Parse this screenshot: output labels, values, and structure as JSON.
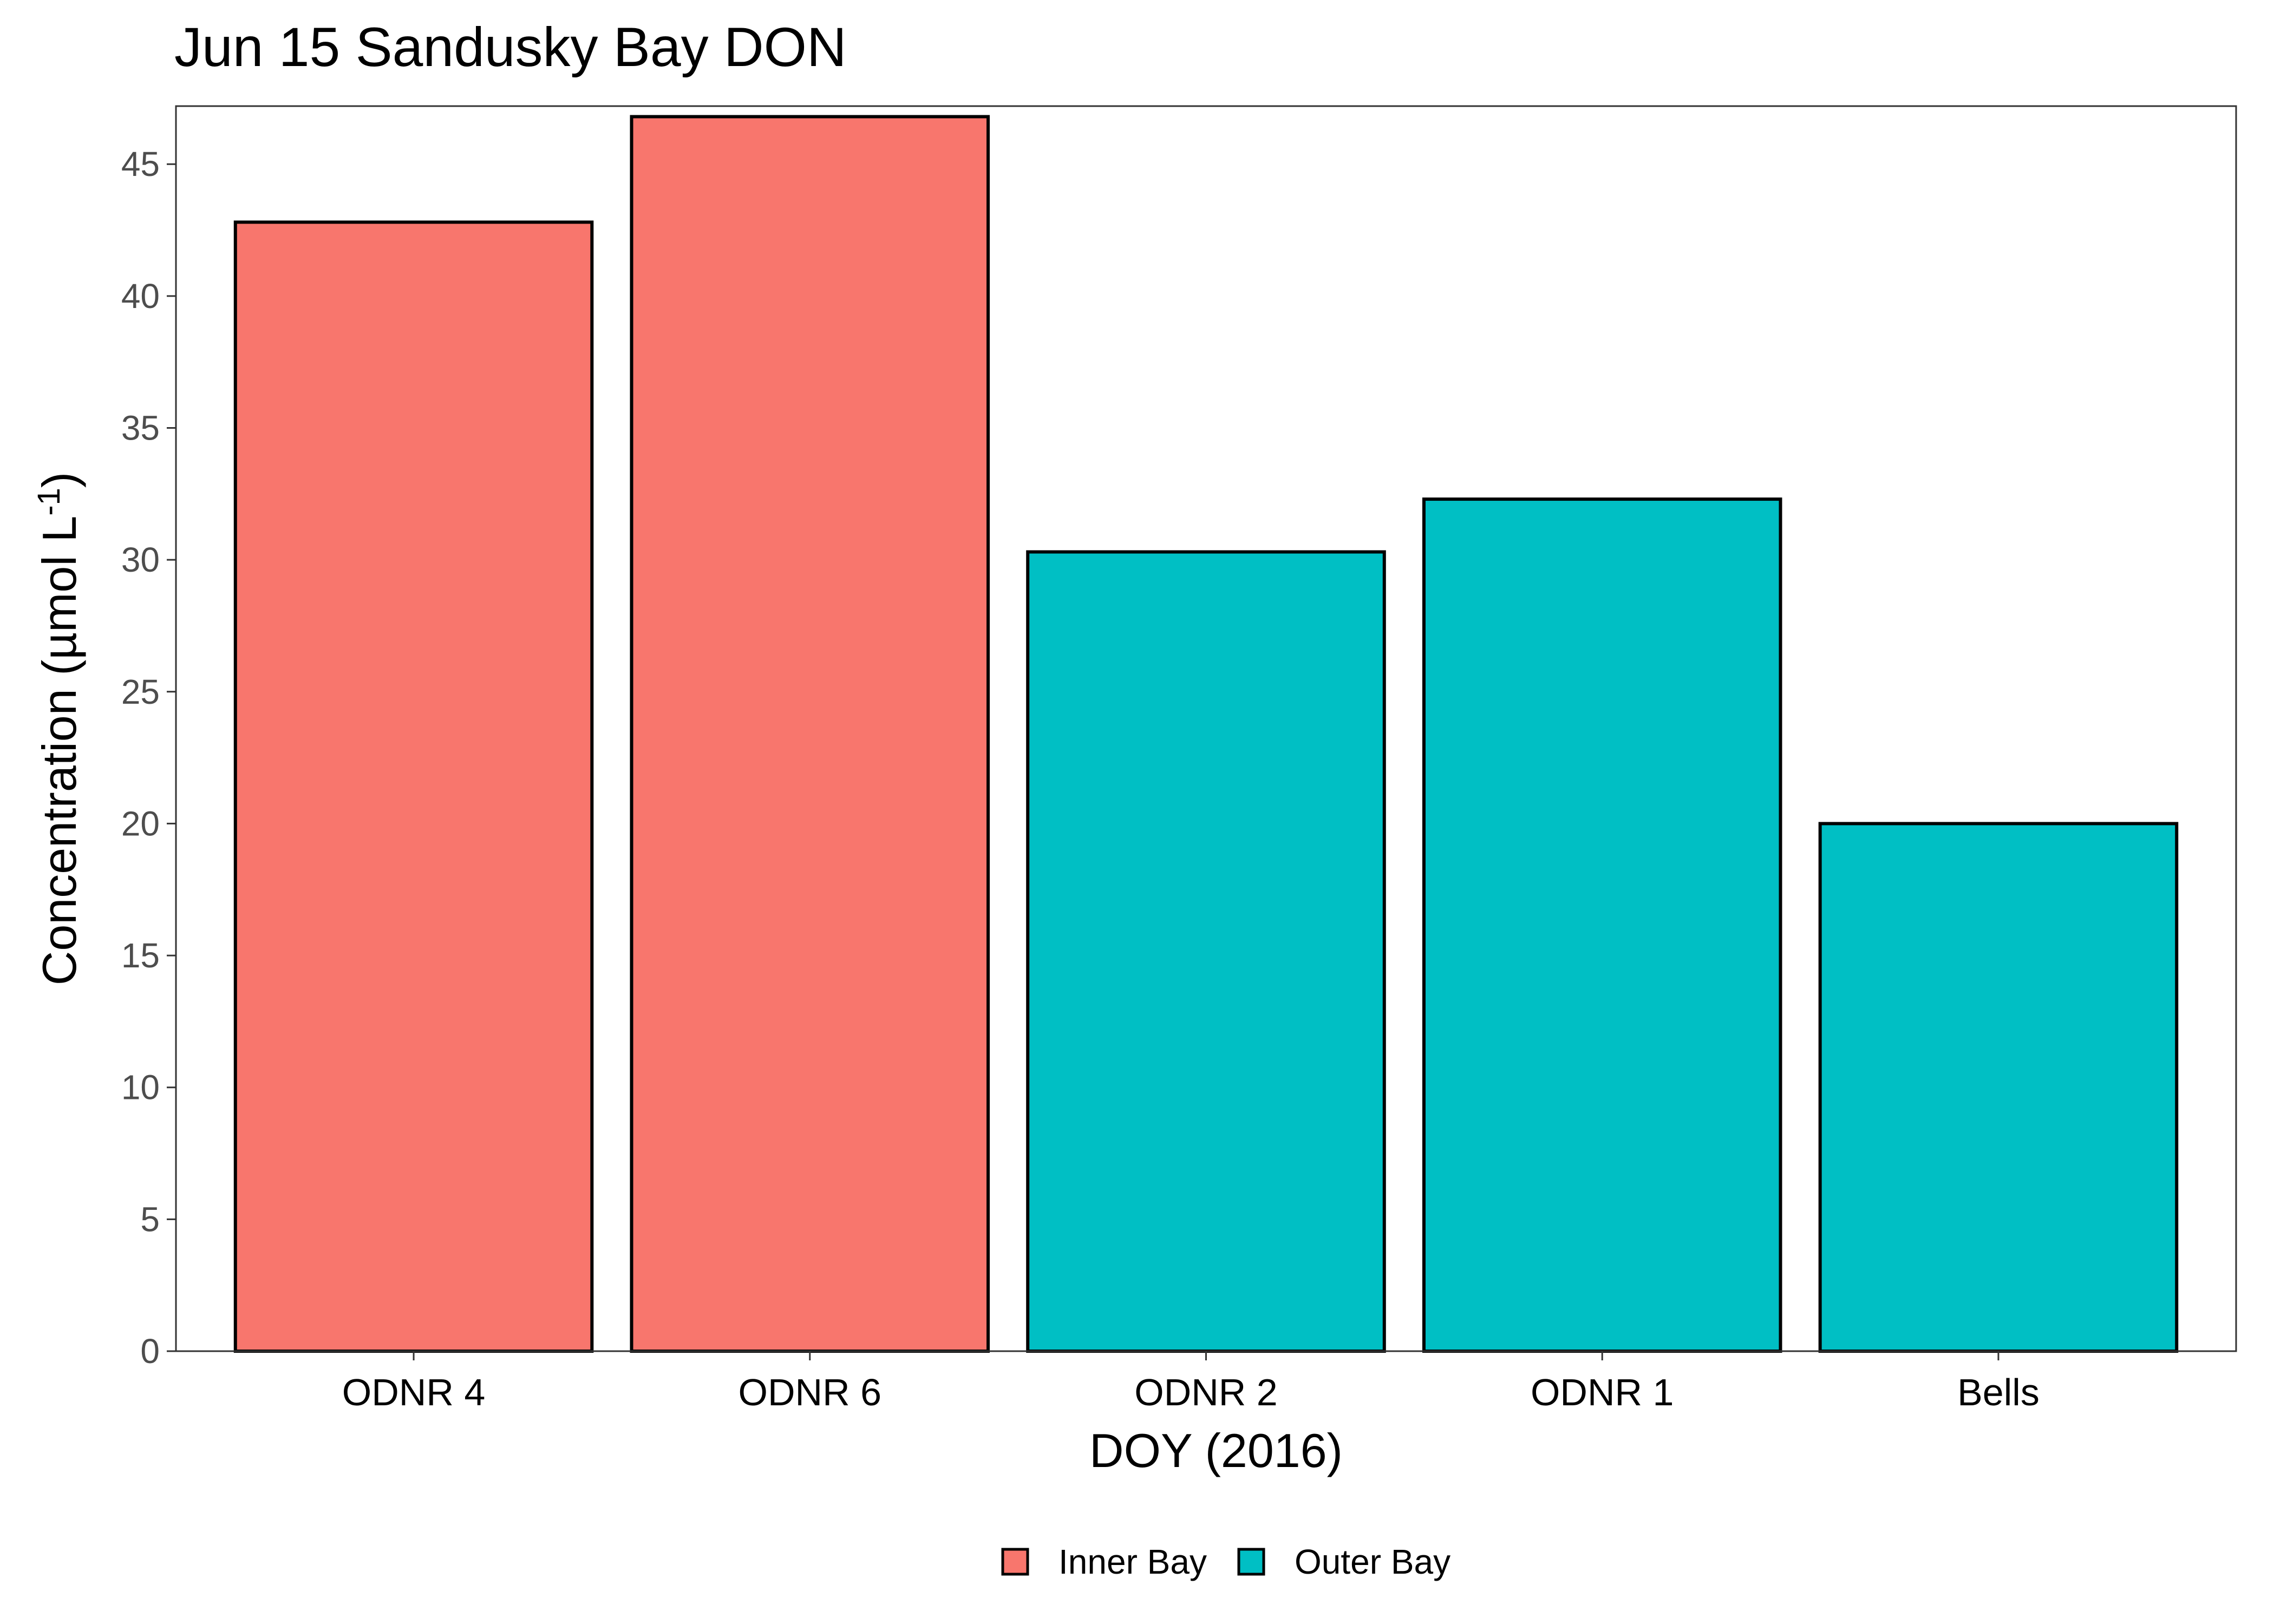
{
  "chart_data": {
    "type": "bar",
    "title": "Jun 15 Sandusky Bay DON",
    "xlabel": "DOY (2016)",
    "ylabel": {
      "prefix": "Concentration (µmol L",
      "superscript": "-1",
      "suffix": ")"
    },
    "categories": [
      "ODNR 4",
      "ODNR 6",
      "ODNR 2",
      "ODNR 1",
      "Bells"
    ],
    "values": [
      42.8,
      46.8,
      30.3,
      32.3,
      20.0
    ],
    "groups": [
      "Inner Bay",
      "Inner Bay",
      "Outer Bay",
      "Outer Bay",
      "Outer Bay"
    ],
    "ylim": [
      0,
      47.2
    ],
    "yticks": [
      0,
      5,
      10,
      15,
      20,
      25,
      30,
      35,
      40,
      45
    ],
    "legend": {
      "position": "bottom",
      "entries": [
        {
          "label": "Inner Bay",
          "color": "#F8766D"
        },
        {
          "label": "Outer Bay",
          "color": "#00BFC4"
        }
      ]
    },
    "grid": false,
    "colors": {
      "Inner Bay": "#F8766D",
      "Outer Bay": "#00BFC4",
      "bar_outline": "#000000"
    }
  }
}
